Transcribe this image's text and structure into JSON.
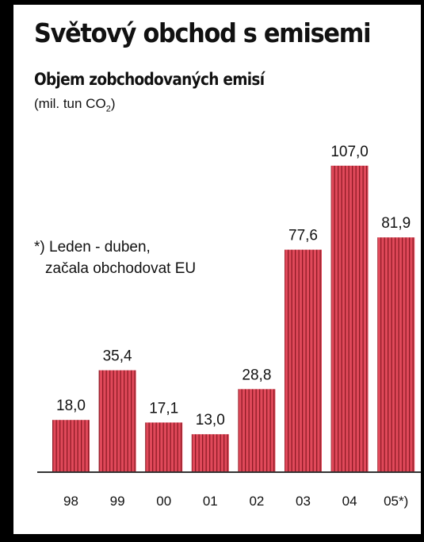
{
  "header": {
    "title": "Světový obchod s emisemi",
    "subtitle": "Objem zobchodovaných emisí",
    "unit_prefix": "(mil. tun CO",
    "unit_sub": "2",
    "unit_suffix": ")"
  },
  "note": {
    "line1": "*) Leden - duben,",
    "line2": "začala obchodovat EU"
  },
  "colors": {
    "bar_fill": "#e0495a",
    "bar_stripe": "#8e1a25",
    "axis": "#333333",
    "frame": "#000000"
  },
  "chart_data": {
    "type": "bar",
    "title": "Světový obchod s emisemi",
    "subtitle": "Objem zobchodovaných emisí",
    "ylabel": "(mil. tun CO2)",
    "categories": [
      "98",
      "99",
      "00",
      "01",
      "02",
      "03",
      "04",
      "05*)"
    ],
    "values": [
      18.0,
      35.4,
      17.1,
      13.0,
      28.8,
      77.6,
      107.0,
      81.9
    ],
    "value_labels": [
      "18,0",
      "35,4",
      "17,1",
      "13,0",
      "28,8",
      "77,6",
      "107,0",
      "81,9"
    ],
    "ylim": [
      0,
      110
    ],
    "grid": false,
    "legend": "none"
  }
}
